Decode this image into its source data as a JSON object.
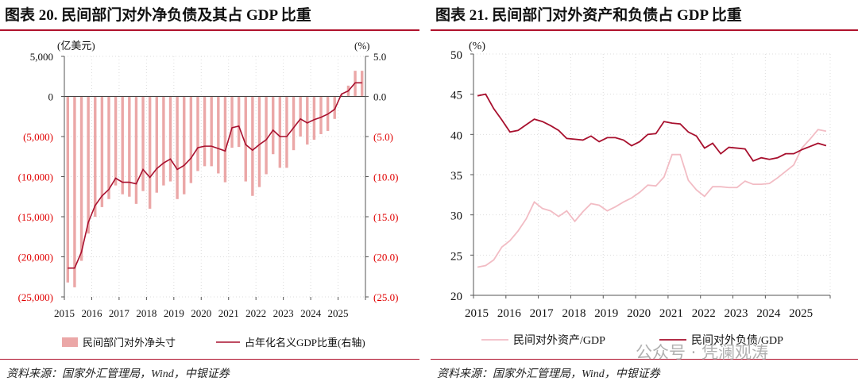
{
  "watermark": "公众号 · 凭澜观涛",
  "colors": {
    "bar": "#eba7a7",
    "line": "#a8102e",
    "assets": "#f2bcc4",
    "accent": "#b0122c",
    "negative_tick": "#e00000"
  },
  "panels": [
    {
      "title": "图表 20. 民间部门对外净负债及其占 GDP 比重",
      "source": "资料来源：国家外汇管理局，Wind，中银证券"
    },
    {
      "title": "图表 21. 民间部门对外资产和负债占 GDP 比重",
      "source": "资料来源：国家外汇管理局，Wind，中银证券"
    }
  ],
  "chart_data": [
    {
      "type": "bar+line",
      "title": "",
      "frequency": "quarterly",
      "x_start": "2015Q1",
      "xtick_labels": [
        "2015",
        "2016",
        "2017",
        "2018",
        "2019",
        "2020",
        "2021",
        "2022",
        "2023",
        "2024",
        "2025"
      ],
      "left_axis": {
        "unit": "(亿美元)",
        "ylim": [
          -25000,
          5000
        ],
        "ticks": [
          5000,
          0,
          -5000,
          -10000,
          -15000,
          -20000,
          -25000
        ],
        "tick_labels": [
          "5,000",
          "0",
          "(5,000)",
          "(10,000)",
          "(15,000)",
          "(20,000)",
          "(25,000)"
        ]
      },
      "right_axis": {
        "unit": "(%)",
        "ylim": [
          -25,
          5
        ],
        "ticks": [
          5,
          0,
          -5,
          -10,
          -15,
          -20,
          -25
        ],
        "tick_labels": [
          "5.0",
          "0.0",
          "(5.0)",
          "(10.0)",
          "(15.0)",
          "(20.0)",
          "(25.0)"
        ]
      },
      "grid": true,
      "legend_position": "bottom",
      "series": [
        {
          "name": "民间部门对外净头寸",
          "type": "bar",
          "axis": "left",
          "values": [
            -23200,
            -23800,
            -20500,
            -17100,
            -15000,
            -13800,
            -12800,
            -11100,
            -12200,
            -12500,
            -13400,
            -11800,
            -14000,
            -12000,
            -11100,
            -10600,
            -12800,
            -12200,
            -10800,
            -9300,
            -8700,
            -8700,
            -9600,
            -10700,
            -6400,
            -6300,
            -10600,
            -12400,
            -11300,
            -9700,
            -7200,
            -8900,
            -8900,
            -6700,
            -5000,
            -6000,
            -5400,
            -4700,
            -4300,
            -2800,
            200,
            1350,
            3200,
            3200
          ]
        },
        {
          "name": "占年化名义GDP比重(右轴)",
          "type": "line",
          "axis": "right",
          "values": [
            -21.4,
            -21.4,
            -19.4,
            -15.7,
            -13.6,
            -12.4,
            -11.6,
            -10.2,
            -10.7,
            -10.7,
            -10.9,
            -9.1,
            -10.1,
            -9.0,
            -8.3,
            -7.8,
            -9.1,
            -8.6,
            -7.7,
            -6.4,
            -6.2,
            -6.2,
            -6.5,
            -6.8,
            -3.9,
            -3.7,
            -6.0,
            -6.7,
            -6.0,
            -5.4,
            -4.2,
            -5.0,
            -5.0,
            -3.9,
            -2.8,
            -3.3,
            -2.9,
            -2.6,
            -2.2,
            -1.6,
            0.3,
            0.7,
            1.7,
            1.7
          ]
        }
      ]
    },
    {
      "type": "line",
      "title": "",
      "frequency": "quarterly",
      "x_start": "2015Q1",
      "xtick_labels": [
        "2015",
        "2016",
        "2017",
        "2018",
        "2019",
        "2020",
        "2021",
        "2022",
        "2023",
        "2024",
        "2025"
      ],
      "y_axis": {
        "unit": "(%)",
        "ylim": [
          20,
          50
        ],
        "ticks": [
          50,
          45,
          40,
          35,
          30,
          25,
          20
        ],
        "tick_labels": [
          "50",
          "45",
          "40",
          "35",
          "30",
          "25",
          "20"
        ]
      },
      "grid": true,
      "legend_position": "bottom",
      "series": [
        {
          "name": "民间对外资产/GDP",
          "values": [
            23.5,
            23.7,
            24.4,
            26.0,
            26.8,
            28.0,
            29.5,
            31.6,
            30.8,
            30.5,
            29.8,
            30.5,
            29.2,
            30.4,
            31.4,
            31.2,
            30.5,
            31.0,
            31.6,
            32.1,
            32.8,
            33.7,
            33.6,
            34.7,
            37.5,
            37.5,
            34.3,
            33.1,
            32.3,
            33.5,
            33.5,
            33.4,
            33.4,
            34.2,
            33.8,
            33.8,
            33.9,
            34.6,
            35.4,
            36.2,
            38.3,
            39.4,
            40.6,
            40.4
          ]
        },
        {
          "name": "民间对外负债/GDP",
          "values": [
            44.8,
            45.0,
            43.2,
            41.8,
            40.3,
            40.5,
            41.2,
            41.9,
            41.6,
            41.1,
            40.5,
            39.5,
            39.4,
            39.3,
            39.8,
            39.1,
            39.6,
            39.6,
            39.3,
            38.6,
            39.1,
            40.0,
            40.1,
            41.6,
            41.4,
            41.3,
            40.3,
            39.8,
            38.3,
            38.9,
            37.6,
            38.4,
            38.3,
            38.2,
            36.7,
            37.1,
            36.9,
            37.1,
            37.6,
            37.6,
            38.1,
            38.5,
            38.9,
            38.6
          ]
        }
      ]
    }
  ]
}
